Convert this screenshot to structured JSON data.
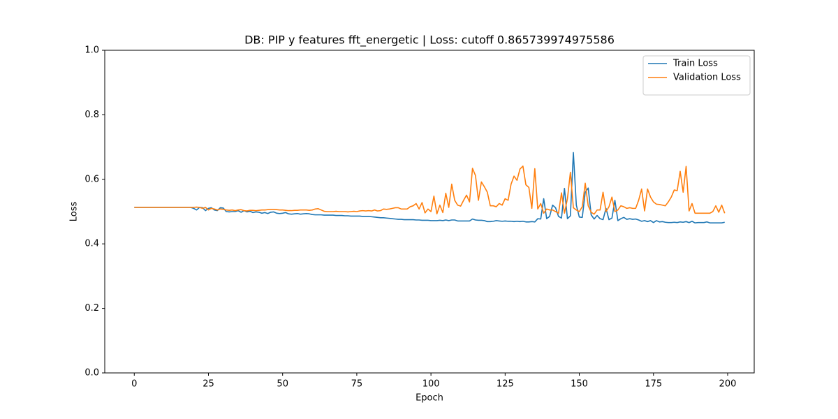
{
  "chart_data": {
    "type": "line",
    "title": "DB: PIP y features fft_energetic | Loss: cutoff 0.865739974975586",
    "x_label": "Epoch",
    "y_label": "Loss",
    "x": [
      0,
      1,
      2,
      3,
      4,
      5,
      6,
      7,
      8,
      9,
      10,
      11,
      12,
      13,
      14,
      15,
      16,
      17,
      18,
      19,
      20,
      21,
      22,
      23,
      24,
      25,
      26,
      27,
      28,
      29,
      30,
      31,
      32,
      33,
      34,
      35,
      36,
      37,
      38,
      39,
      40,
      41,
      42,
      43,
      44,
      45,
      46,
      47,
      48,
      49,
      50,
      51,
      52,
      53,
      54,
      55,
      56,
      57,
      58,
      59,
      60,
      61,
      62,
      63,
      64,
      65,
      66,
      67,
      68,
      69,
      70,
      71,
      72,
      73,
      74,
      75,
      76,
      77,
      78,
      79,
      80,
      81,
      82,
      83,
      84,
      85,
      86,
      87,
      88,
      89,
      90,
      91,
      92,
      93,
      94,
      95,
      96,
      97,
      98,
      99,
      100,
      101,
      102,
      103,
      104,
      105,
      106,
      107,
      108,
      109,
      110,
      111,
      112,
      113,
      114,
      115,
      116,
      117,
      118,
      119,
      120,
      121,
      122,
      123,
      124,
      125,
      126,
      127,
      128,
      129,
      130,
      131,
      132,
      133,
      134,
      135,
      136,
      137,
      138,
      139,
      140,
      141,
      142,
      143,
      144,
      145,
      146,
      147,
      148,
      149,
      150,
      151,
      152,
      153,
      154,
      155,
      156,
      157,
      158,
      159,
      160,
      161,
      162,
      163,
      164,
      165,
      166,
      167,
      168,
      169,
      170,
      171,
      172,
      173,
      174,
      175,
      176,
      177,
      178,
      179,
      180,
      181,
      182,
      183,
      184,
      185,
      186,
      187,
      188,
      189,
      190,
      191,
      192,
      193,
      194,
      195,
      196,
      197,
      198,
      199
    ],
    "series": [
      {
        "name": "Train Loss",
        "color": "#1f77b4",
        "values": [
          0.513,
          0.513,
          0.513,
          0.513,
          0.513,
          0.513,
          0.513,
          0.513,
          0.513,
          0.513,
          0.513,
          0.513,
          0.513,
          0.513,
          0.513,
          0.513,
          0.513,
          0.513,
          0.513,
          0.513,
          0.51,
          0.505,
          0.513,
          0.512,
          0.503,
          0.51,
          0.512,
          0.505,
          0.503,
          0.512,
          0.511,
          0.5,
          0.499,
          0.5,
          0.5,
          0.503,
          0.498,
          0.503,
          0.499,
          0.501,
          0.497,
          0.499,
          0.498,
          0.495,
          0.497,
          0.494,
          0.498,
          0.499,
          0.495,
          0.494,
          0.495,
          0.497,
          0.493,
          0.492,
          0.493,
          0.494,
          0.492,
          0.493,
          0.494,
          0.493,
          0.491,
          0.49,
          0.49,
          0.49,
          0.489,
          0.489,
          0.489,
          0.489,
          0.488,
          0.488,
          0.488,
          0.487,
          0.487,
          0.486,
          0.486,
          0.486,
          0.486,
          0.485,
          0.485,
          0.485,
          0.484,
          0.483,
          0.482,
          0.481,
          0.481,
          0.48,
          0.479,
          0.478,
          0.477,
          0.476,
          0.476,
          0.475,
          0.475,
          0.475,
          0.475,
          0.474,
          0.474,
          0.473,
          0.473,
          0.473,
          0.472,
          0.472,
          0.472,
          0.473,
          0.472,
          0.474,
          0.472,
          0.474,
          0.474,
          0.471,
          0.471,
          0.471,
          0.471,
          0.471,
          0.477,
          0.474,
          0.473,
          0.473,
          0.472,
          0.469,
          0.469,
          0.47,
          0.472,
          0.471,
          0.47,
          0.471,
          0.47,
          0.47,
          0.469,
          0.47,
          0.469,
          0.47,
          0.468,
          0.468,
          0.469,
          0.468,
          0.478,
          0.477,
          0.54,
          0.478,
          0.485,
          0.52,
          0.512,
          0.485,
          0.48,
          0.572,
          0.478,
          0.487,
          0.683,
          0.52,
          0.483,
          0.482,
          0.56,
          0.573,
          0.49,
          0.477,
          0.488,
          0.478,
          0.475,
          0.51,
          0.475,
          0.48,
          0.535,
          0.472,
          0.478,
          0.482,
          0.476,
          0.478,
          0.476,
          0.477,
          0.474,
          0.47,
          0.472,
          0.469,
          0.472,
          0.466,
          0.472,
          0.468,
          0.469,
          0.467,
          0.466,
          0.466,
          0.467,
          0.466,
          0.468,
          0.467,
          0.469,
          0.466,
          0.47,
          0.465,
          0.466,
          0.466,
          0.466,
          0.468,
          0.465,
          0.465,
          0.465,
          0.465,
          0.465,
          0.467
        ]
      },
      {
        "name": "Validation Loss",
        "color": "#ff7f0e",
        "values": [
          0.513,
          0.513,
          0.513,
          0.513,
          0.513,
          0.513,
          0.513,
          0.513,
          0.513,
          0.513,
          0.513,
          0.513,
          0.513,
          0.513,
          0.513,
          0.513,
          0.513,
          0.513,
          0.513,
          0.513,
          0.513,
          0.514,
          0.513,
          0.51,
          0.513,
          0.505,
          0.51,
          0.508,
          0.505,
          0.508,
          0.507,
          0.505,
          0.504,
          0.505,
          0.503,
          0.505,
          0.506,
          0.503,
          0.502,
          0.504,
          0.504,
          0.503,
          0.504,
          0.505,
          0.505,
          0.506,
          0.507,
          0.507,
          0.506,
          0.505,
          0.505,
          0.504,
          0.503,
          0.503,
          0.504,
          0.504,
          0.505,
          0.505,
          0.505,
          0.504,
          0.505,
          0.508,
          0.509,
          0.505,
          0.501,
          0.5,
          0.5,
          0.5,
          0.501,
          0.5,
          0.5,
          0.5,
          0.499,
          0.5,
          0.501,
          0.5,
          0.502,
          0.503,
          0.502,
          0.503,
          0.502,
          0.505,
          0.502,
          0.503,
          0.508,
          0.507,
          0.508,
          0.51,
          0.512,
          0.512,
          0.508,
          0.508,
          0.508,
          0.515,
          0.518,
          0.525,
          0.508,
          0.528,
          0.496,
          0.508,
          0.5,
          0.548,
          0.493,
          0.52,
          0.497,
          0.557,
          0.513,
          0.585,
          0.535,
          0.52,
          0.517,
          0.535,
          0.551,
          0.53,
          0.634,
          0.612,
          0.535,
          0.592,
          0.577,
          0.56,
          0.518,
          0.518,
          0.515,
          0.525,
          0.52,
          0.54,
          0.535,
          0.585,
          0.61,
          0.597,
          0.632,
          0.641,
          0.583,
          0.575,
          0.51,
          0.633,
          0.508,
          0.525,
          0.495,
          0.508,
          0.505,
          0.505,
          0.5,
          0.495,
          0.558,
          0.495,
          0.54,
          0.622,
          0.512,
          0.505,
          0.5,
          0.515,
          0.588,
          0.518,
          0.498,
          0.492,
          0.505,
          0.505,
          0.56,
          0.5,
          0.515,
          0.545,
          0.5,
          0.505,
          0.518,
          0.515,
          0.51,
          0.512,
          0.51,
          0.51,
          0.535,
          0.57,
          0.502,
          0.57,
          0.545,
          0.53,
          0.523,
          0.522,
          0.52,
          0.518,
          0.53,
          0.545,
          0.567,
          0.565,
          0.625,
          0.56,
          0.64,
          0.502,
          0.525,
          0.495,
          0.495,
          0.495,
          0.495,
          0.495,
          0.495,
          0.5,
          0.518,
          0.498,
          0.52,
          0.495
        ]
      }
    ],
    "xlim": [
      -9.95,
      208.95
    ],
    "xticks": [
      0,
      25,
      50,
      75,
      100,
      125,
      150,
      175,
      200
    ],
    "ylim": [
      0,
      1
    ],
    "yticks": [
      {
        "value": 0,
        "label": "0.0"
      },
      0.2,
      0.4,
      0.6,
      0.8,
      {
        "value": 1,
        "label": "1.0"
      }
    ],
    "legend": "upper right",
    "grid": false
  }
}
